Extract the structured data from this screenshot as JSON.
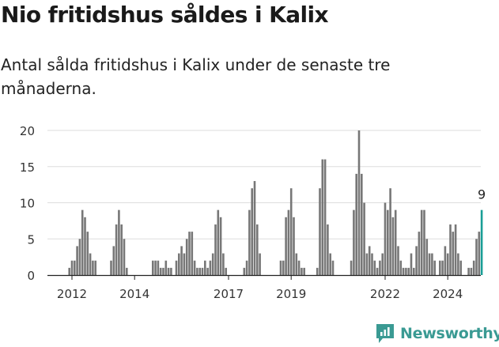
{
  "title": "Nio fritidshus såldes i Kalix",
  "subtitle": "Antal sålda fritidshus i Kalix under de senaste tre månaderna.",
  "logo_text": "Newsworthy",
  "colors": {
    "bar": "#777777",
    "highlight": "#1a9e96",
    "grid": "#dddddd",
    "axis": "#222222"
  },
  "chart_data": {
    "type": "bar",
    "title": "Nio fritidshus såldes i Kalix",
    "subtitle": "Antal sålda fritidshus i Kalix under de senaste tre månaderna.",
    "start": "2011-04",
    "frequency": "monthly",
    "ylim": [
      0,
      20
    ],
    "yticks": [
      0,
      5,
      10,
      15,
      20
    ],
    "xticks": [
      "2012",
      "2014",
      "2017",
      "2019",
      "2022",
      "2024"
    ],
    "grid": true,
    "values": [
      0,
      0,
      0,
      0,
      0,
      0,
      0,
      0,
      1,
      2,
      2,
      4,
      5,
      9,
      8,
      6,
      3,
      2,
      2,
      0,
      0,
      0,
      0,
      0,
      2,
      4,
      7,
      9,
      7,
      5,
      1,
      0,
      0,
      0,
      0,
      0,
      0,
      0,
      0,
      0,
      2,
      2,
      2,
      1,
      1,
      2,
      1,
      1,
      0,
      2,
      3,
      4,
      3,
      5,
      6,
      6,
      2,
      1,
      1,
      1,
      2,
      1,
      2,
      3,
      7,
      9,
      8,
      3,
      1,
      0,
      0,
      0,
      0,
      0,
      0,
      1,
      2,
      9,
      12,
      13,
      7,
      3,
      0,
      0,
      0,
      0,
      0,
      0,
      0,
      2,
      2,
      8,
      9,
      12,
      8,
      3,
      2,
      1,
      1,
      0,
      0,
      0,
      0,
      1,
      12,
      16,
      16,
      7,
      3,
      2,
      0,
      0,
      0,
      0,
      0,
      0,
      2,
      9,
      14,
      20,
      14,
      10,
      3,
      4,
      3,
      2,
      1,
      2,
      3,
      10,
      9,
      12,
      8,
      9,
      4,
      2,
      1,
      1,
      1,
      3,
      1,
      4,
      6,
      9,
      9,
      5,
      3,
      3,
      2,
      0,
      2,
      2,
      4,
      3,
      7,
      6,
      7,
      3,
      2,
      0,
      0,
      1,
      1,
      2,
      5,
      6,
      9
    ],
    "highlight": {
      "label": "9",
      "value": 9,
      "index": "last"
    }
  }
}
